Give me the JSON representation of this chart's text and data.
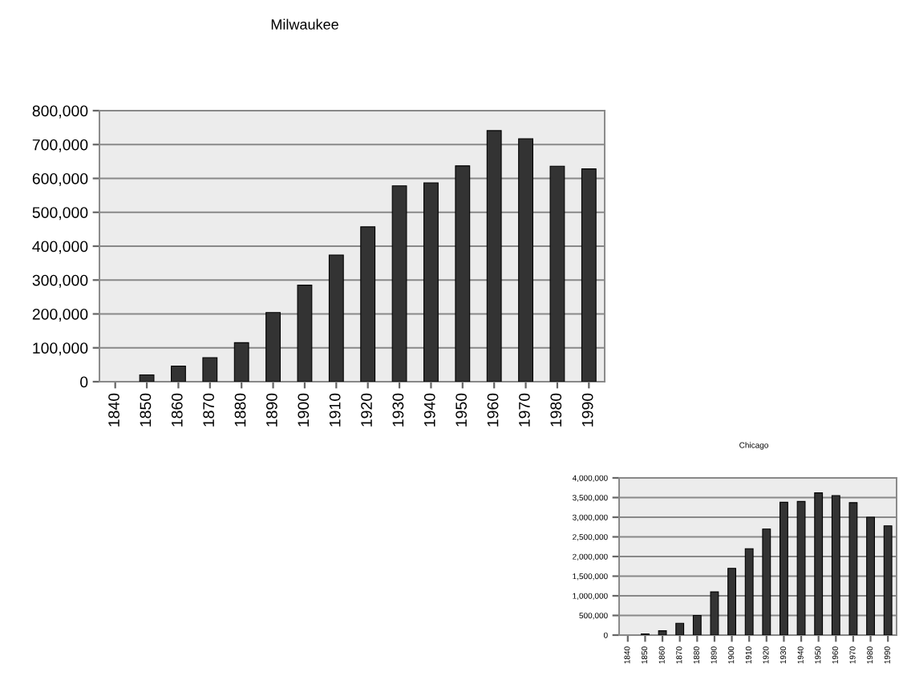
{
  "chart_data": [
    {
      "type": "bar",
      "title": "Milwaukee",
      "categories": [
        "1840",
        "1850",
        "1860",
        "1870",
        "1880",
        "1890",
        "1900",
        "1910",
        "1920",
        "1930",
        "1940",
        "1950",
        "1960",
        "1970",
        "1980",
        "1990"
      ],
      "series": [
        {
          "color": "#333333",
          "values": [
            null,
            20000,
            46000,
            71000,
            115000,
            204000,
            285000,
            374000,
            457000,
            578000,
            587000,
            637000,
            741000,
            717000,
            636000,
            628000
          ]
        }
      ],
      "ylim": [
        0,
        800000
      ],
      "yticks": [
        {
          "value": 0,
          "label": "0"
        },
        {
          "value": 100000,
          "label": "100,000"
        },
        {
          "value": 200000,
          "label": "200,000"
        },
        {
          "value": 300000,
          "label": "300,000"
        },
        {
          "value": 400000,
          "label": "400,000"
        },
        {
          "value": 500000,
          "label": "500,000"
        },
        {
          "value": 600000,
          "label": "600,000"
        },
        {
          "value": 700000,
          "label": "700,000"
        },
        {
          "value": 800000,
          "label": "800,000"
        }
      ],
      "grid": "y"
    },
    {
      "type": "bar",
      "title": "Chicago",
      "categories": [
        "1840",
        "1850",
        "1860",
        "1870",
        "1880",
        "1890",
        "1900",
        "1910",
        "1920",
        "1930",
        "1940",
        "1950",
        "1960",
        "1970",
        "1980",
        "1990"
      ],
      "series": [
        {
          "color": "#333333",
          "values": [
            null,
            30000,
            110000,
            300000,
            500000,
            1100000,
            1700000,
            2200000,
            2700000,
            3380000,
            3400000,
            3620000,
            3550000,
            3370000,
            3000000,
            2780000
          ]
        }
      ],
      "ylim": [
        0,
        4000000
      ],
      "yticks": [
        {
          "value": 0,
          "label": "0"
        },
        {
          "value": 500000,
          "label": "500,000"
        },
        {
          "value": 1000000,
          "label": "1,000,000"
        },
        {
          "value": 1500000,
          "label": "1,500,000"
        },
        {
          "value": 2000000,
          "label": "2,000,000"
        },
        {
          "value": 2500000,
          "label": "2,500,000"
        },
        {
          "value": 3000000,
          "label": "3,000,000"
        },
        {
          "value": 3500000,
          "label": "3,500,000"
        },
        {
          "value": 4000000,
          "label": "4,000,000"
        }
      ],
      "grid": "y"
    }
  ]
}
